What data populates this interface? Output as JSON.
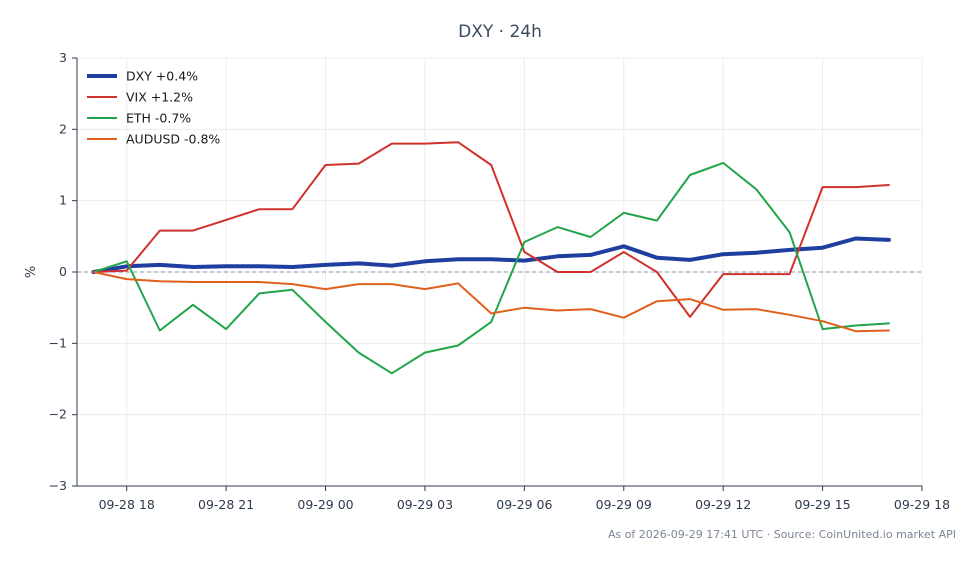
{
  "chart_data": {
    "type": "line",
    "title": "DXY · 24h",
    "ylabel": "%",
    "xlabel": "",
    "ylim": [
      -3,
      3
    ],
    "yticks": [
      -3,
      -2,
      -1,
      0,
      1,
      2,
      3
    ],
    "ytick_labels": [
      "−3",
      "−2",
      "−1",
      "0",
      "1",
      "2",
      "3"
    ],
    "xlim": [
      "2026-09-28 16:30",
      "2026-09-29 18:00"
    ],
    "xticks": [
      "2026-09-28 18:00",
      "2026-09-28 21:00",
      "2026-09-29 00:00",
      "2026-09-29 03:00",
      "2026-09-29 06:00",
      "2026-09-29 09:00",
      "2026-09-29 12:00",
      "2026-09-29 15:00",
      "2026-09-29 18:00"
    ],
    "xtick_labels": [
      "09-28 18",
      "09-28 21",
      "09-29 00",
      "09-29 03",
      "09-29 06",
      "09-29 09",
      "09-29 12",
      "09-29 15",
      "09-29 18"
    ],
    "grid": true,
    "zero_line": true,
    "legend_position": "top-left",
    "x": [
      "2026-09-28 17:00",
      "2026-09-28 18:00",
      "2026-09-28 19:00",
      "2026-09-28 20:00",
      "2026-09-28 21:00",
      "2026-09-28 22:00",
      "2026-09-28 23:00",
      "2026-09-29 00:00",
      "2026-09-29 01:00",
      "2026-09-29 02:00",
      "2026-09-29 03:00",
      "2026-09-29 04:00",
      "2026-09-29 05:00",
      "2026-09-29 06:00",
      "2026-09-29 07:00",
      "2026-09-29 08:00",
      "2026-09-29 09:00",
      "2026-09-29 10:00",
      "2026-09-29 11:00",
      "2026-09-29 12:00",
      "2026-09-29 13:00",
      "2026-09-29 14:00",
      "2026-09-29 15:00",
      "2026-09-29 16:00",
      "2026-09-29 17:00"
    ],
    "series": [
      {
        "name": "DXY +0.4%",
        "color": "#1f3fa0",
        "width": 4,
        "values": [
          0.0,
          0.08,
          0.1,
          0.07,
          0.08,
          0.08,
          0.07,
          0.1,
          0.12,
          0.09,
          0.15,
          0.18,
          0.18,
          0.16,
          0.22,
          0.24,
          0.36,
          0.2,
          0.17,
          0.25,
          0.27,
          0.31,
          0.34,
          0.47,
          0.45
        ]
      },
      {
        "name": "VIX +1.2%",
        "color": "#d0312d",
        "width": 2,
        "values": [
          0.0,
          0.02,
          0.58,
          0.58,
          0.73,
          0.88,
          0.88,
          1.5,
          1.52,
          1.8,
          1.8,
          1.82,
          1.5,
          0.28,
          0.0,
          0.0,
          0.28,
          0.0,
          -0.63,
          -0.03,
          -0.03,
          -0.03,
          1.19,
          1.19,
          1.22
        ]
      },
      {
        "name": "ETH -0.7%",
        "color": "#22a54a",
        "width": 2,
        "values": [
          0.0,
          0.15,
          -0.82,
          -0.46,
          -0.8,
          -0.3,
          -0.25,
          -0.7,
          -1.13,
          -1.42,
          -1.13,
          -1.03,
          -0.7,
          0.42,
          0.63,
          0.49,
          0.83,
          0.72,
          1.36,
          1.53,
          1.16,
          0.56,
          -0.8,
          -0.75,
          -0.72
        ]
      },
      {
        "name": "AUDUSD -0.8%",
        "color": "#e0601e",
        "width": 2,
        "values": [
          0.0,
          -0.1,
          -0.13,
          -0.14,
          -0.14,
          -0.14,
          -0.17,
          -0.24,
          -0.17,
          -0.17,
          -0.24,
          -0.16,
          -0.58,
          -0.5,
          -0.54,
          -0.52,
          -0.64,
          -0.41,
          -0.38,
          -0.53,
          -0.52,
          -0.6,
          -0.69,
          -0.83,
          -0.82
        ]
      }
    ]
  },
  "footer": {
    "source": "As of 2026-09-29 17:41 UTC · Source: CoinUnited.io market API"
  }
}
